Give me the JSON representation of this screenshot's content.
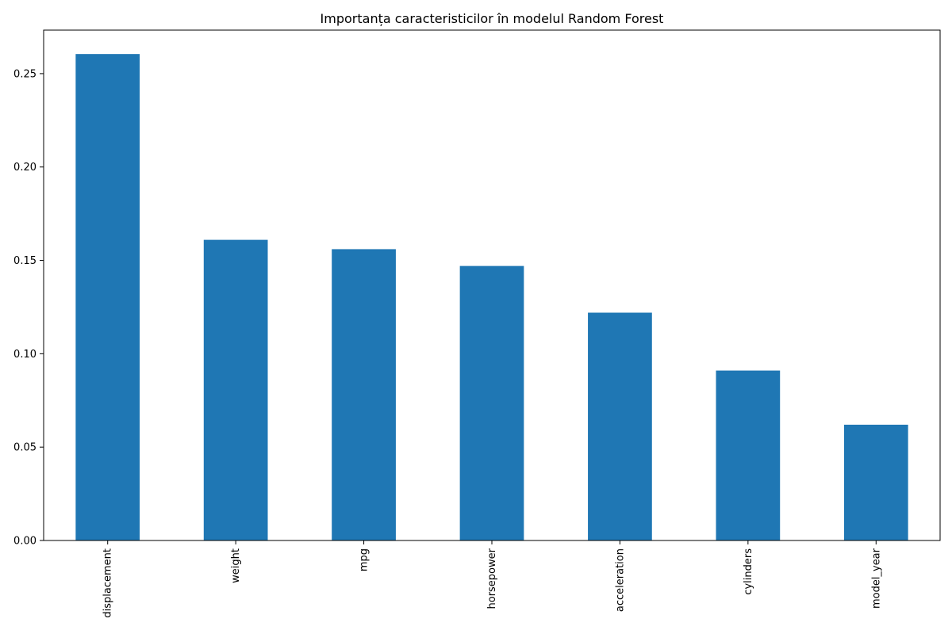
{
  "chart_data": {
    "type": "bar",
    "title": "Importanța caracteristicilor în modelul Random Forest",
    "xlabel": "",
    "ylabel": "",
    "categories": [
      "displacement",
      "weight",
      "mpg",
      "horsepower",
      "acceleration",
      "cylinders",
      "model_year"
    ],
    "values": [
      0.2605,
      0.161,
      0.156,
      0.147,
      0.122,
      0.091,
      0.062
    ],
    "ylim": [
      0,
      0.2733
    ],
    "yticks": [
      0.0,
      0.05,
      0.1,
      0.15,
      0.2,
      0.25
    ],
    "ytick_labels": [
      "0.00",
      "0.05",
      "0.10",
      "0.15",
      "0.20",
      "0.25"
    ],
    "bar_color": "#1f77b4",
    "grid": false,
    "legend": "none"
  }
}
